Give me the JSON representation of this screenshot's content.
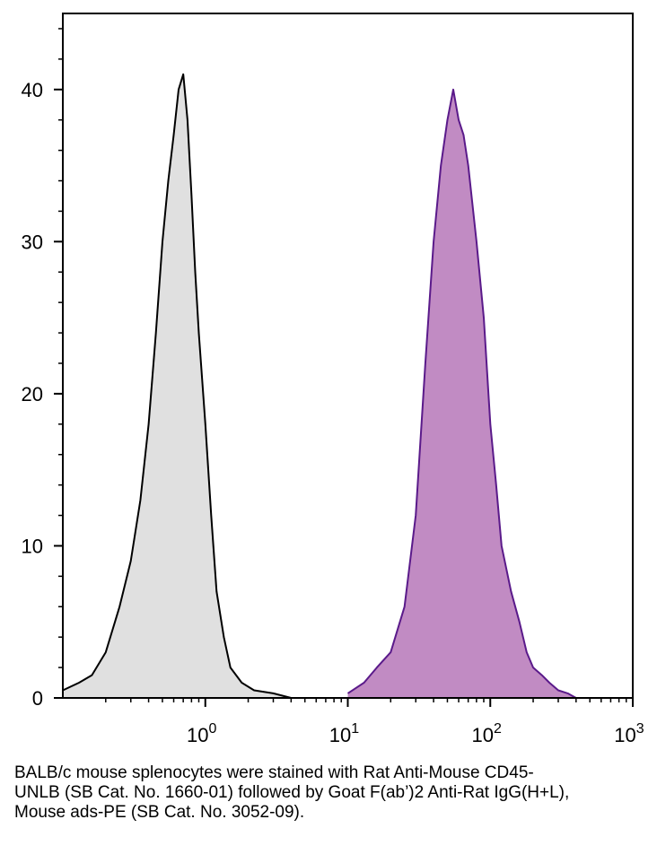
{
  "chart_data": {
    "type": "area",
    "title": "",
    "xlabel": "",
    "ylabel": "",
    "x_scale": "log",
    "xlim": [
      0.1,
      1000
    ],
    "ylim": [
      0,
      45
    ],
    "grid": false,
    "y_ticks": [
      {
        "value": 0,
        "label": "0"
      },
      {
        "value": 10,
        "label": "10"
      },
      {
        "value": 20,
        "label": "20"
      },
      {
        "value": 30,
        "label": "30"
      },
      {
        "value": 40,
        "label": "40"
      }
    ],
    "x_ticks": [
      {
        "value": 1,
        "base": "10",
        "exp": "0"
      },
      {
        "value": 10,
        "base": "10",
        "exp": "1"
      },
      {
        "value": 100,
        "base": "10",
        "exp": "2"
      },
      {
        "value": 1000,
        "base": "10",
        "exp": "3"
      }
    ],
    "series": [
      {
        "color": "#000000",
        "fill": "#e0e0e0",
        "x": [
          0.1,
          0.13,
          0.16,
          0.2,
          0.25,
          0.3,
          0.35,
          0.4,
          0.45,
          0.5,
          0.55,
          0.6,
          0.65,
          0.7,
          0.75,
          0.8,
          0.85,
          0.9,
          1.0,
          1.1,
          1.2,
          1.35,
          1.5,
          1.8,
          2.2,
          3.0,
          4.0
        ],
        "y": [
          0.5,
          1,
          1.5,
          3,
          6,
          9,
          13,
          18,
          24,
          30,
          34,
          37,
          40,
          41,
          38,
          33,
          28,
          24,
          18,
          12,
          7,
          4,
          2,
          1,
          0.5,
          0.3,
          0
        ]
      },
      {
        "color": "#5a1a8a",
        "fill": "#c18bc3",
        "x": [
          10,
          13,
          16,
          20,
          25,
          30,
          35,
          40,
          45,
          50,
          55,
          60,
          65,
          70,
          80,
          90,
          100,
          110,
          120,
          140,
          160,
          180,
          200,
          230,
          260,
          300,
          350,
          400
        ],
        "y": [
          0.3,
          1,
          2,
          3,
          6,
          12,
          22,
          30,
          35,
          38,
          40,
          38,
          37,
          35,
          30,
          25,
          18,
          14,
          10,
          7,
          5,
          3,
          2,
          1.5,
          1,
          0.5,
          0.3,
          0
        ]
      }
    ]
  },
  "caption": "BALB/c mouse splenocytes were stained with Rat Anti-Mouse CD45-UNLB (SB Cat. No. 1660-01) followed by Goat F(ab’)2 Anti-Rat IgG(H+L), Mouse ads-PE (SB Cat. No. 3052-09)."
}
